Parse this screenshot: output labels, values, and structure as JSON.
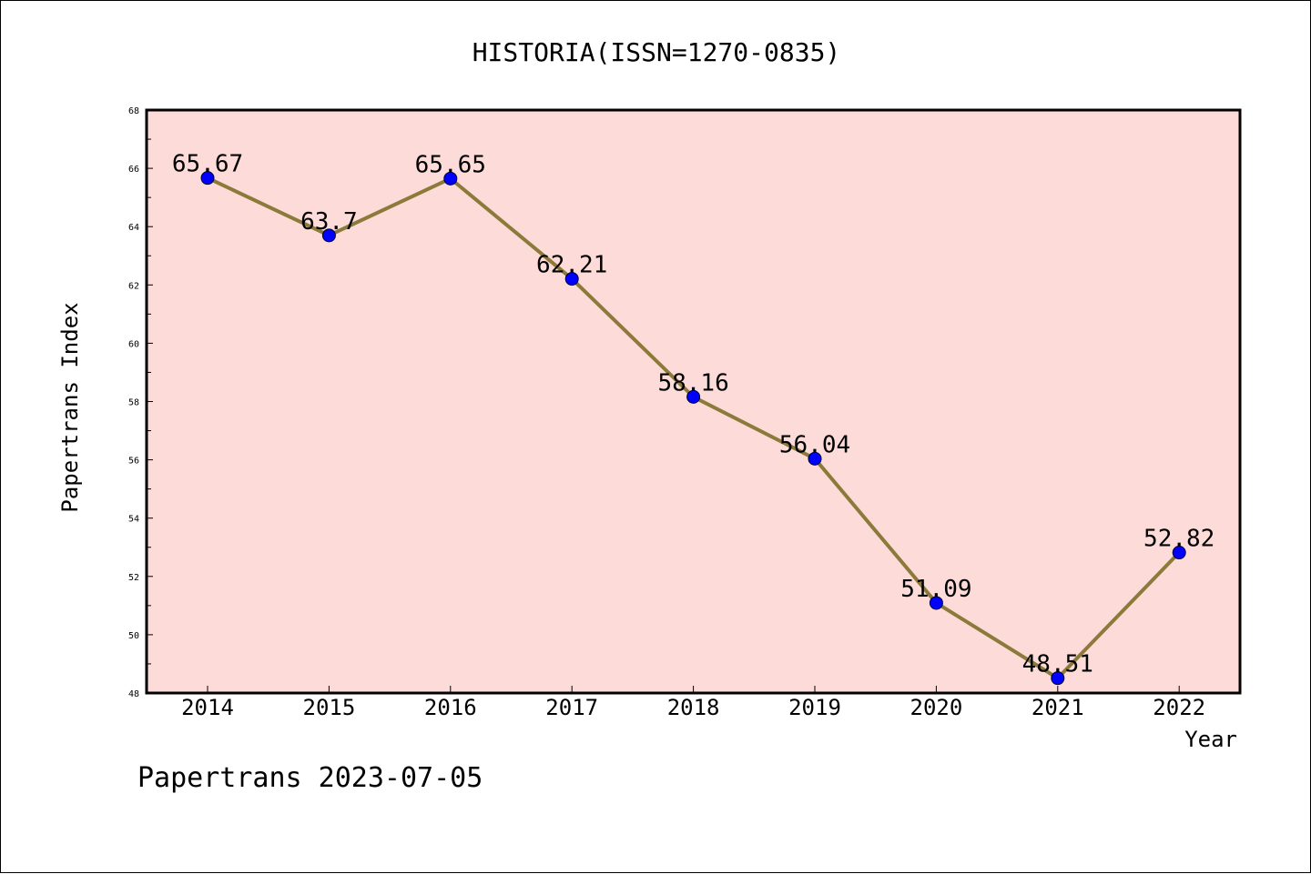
{
  "chart_data": {
    "type": "line",
    "title": "HISTORIA(ISSN=1270-0835)",
    "xlabel": "Year",
    "ylabel": "Papertrans Index",
    "categories": [
      "2014",
      "2015",
      "2016",
      "2017",
      "2018",
      "2019",
      "2020",
      "2021",
      "2022"
    ],
    "series": [
      {
        "values": [
          65.67,
          63.7,
          65.65,
          62.21,
          58.16,
          56.04,
          51.09,
          48.51,
          52.82
        ],
        "labels": [
          "65.67",
          "63.7",
          "65.65",
          "62.21",
          "58.16",
          "56.04",
          "51.09",
          "48.51",
          "52.82"
        ]
      }
    ],
    "ylim": [
      48,
      68
    ],
    "yticks": [
      "48",
      "50",
      "52",
      "54",
      "56",
      "58",
      "60",
      "62",
      "64",
      "66",
      "68"
    ],
    "grid": false,
    "colors": {
      "plot_background": "#fddbd9",
      "line": "#8b7a3a",
      "marker": "#0000ff"
    }
  },
  "footer": "Papertrans 2023-07-05"
}
